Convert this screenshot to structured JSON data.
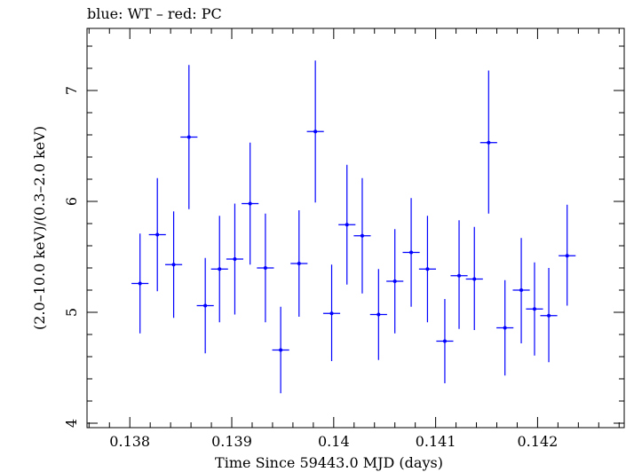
{
  "chart_data": {
    "type": "scatter",
    "title": "blue: WT – red: PC",
    "xlabel": "Time Since 59443.0 MJD (days)",
    "ylabel": "(2.0–10.0 keV)/(0.3–2.0 keV)",
    "xlim": [
      0.13758,
      0.14285
    ],
    "ylim": [
      3.96,
      7.56
    ],
    "xticks": [
      0.138,
      0.139,
      0.14,
      0.141,
      0.142
    ],
    "xtick_labels": [
      "0.138",
      "0.139",
      "0.14",
      "0.141",
      "0.142"
    ],
    "yticks": [
      4,
      5,
      6,
      7
    ],
    "ytick_labels": [
      "4",
      "5",
      "6",
      "7"
    ],
    "grid": false,
    "series": [
      {
        "color": "#0000ff",
        "x_halfwidth": 8.33e-05,
        "points": [
          {
            "x": 0.1381,
            "y": 5.26,
            "lo": 4.81,
            "hi": 5.71
          },
          {
            "x": 0.13827,
            "y": 5.7,
            "lo": 5.19,
            "hi": 6.21
          },
          {
            "x": 0.13843,
            "y": 5.43,
            "lo": 4.95,
            "hi": 5.91
          },
          {
            "x": 0.13858,
            "y": 6.58,
            "lo": 5.93,
            "hi": 7.23
          },
          {
            "x": 0.13874,
            "y": 5.06,
            "lo": 4.63,
            "hi": 5.49
          },
          {
            "x": 0.13888,
            "y": 5.39,
            "lo": 4.91,
            "hi": 5.87
          },
          {
            "x": 0.13903,
            "y": 5.48,
            "lo": 4.98,
            "hi": 5.98
          },
          {
            "x": 0.13918,
            "y": 5.98,
            "lo": 5.43,
            "hi": 6.53
          },
          {
            "x": 0.13933,
            "y": 5.4,
            "lo": 4.91,
            "hi": 5.89
          },
          {
            "x": 0.13948,
            "y": 4.66,
            "lo": 4.27,
            "hi": 5.05
          },
          {
            "x": 0.13966,
            "y": 5.44,
            "lo": 4.96,
            "hi": 5.92
          },
          {
            "x": 0.13982,
            "y": 6.63,
            "lo": 5.99,
            "hi": 7.27
          },
          {
            "x": 0.13998,
            "y": 4.99,
            "lo": 4.56,
            "hi": 5.43
          },
          {
            "x": 0.14013,
            "y": 5.79,
            "lo": 5.25,
            "hi": 6.33
          },
          {
            "x": 0.14028,
            "y": 5.69,
            "lo": 5.17,
            "hi": 6.21
          },
          {
            "x": 0.14044,
            "y": 4.98,
            "lo": 4.57,
            "hi": 5.39
          },
          {
            "x": 0.1406,
            "y": 5.28,
            "lo": 4.81,
            "hi": 5.75
          },
          {
            "x": 0.14076,
            "y": 5.54,
            "lo": 5.05,
            "hi": 6.03
          },
          {
            "x": 0.14092,
            "y": 5.39,
            "lo": 4.91,
            "hi": 5.87
          },
          {
            "x": 0.14109,
            "y": 4.74,
            "lo": 4.36,
            "hi": 5.12
          },
          {
            "x": 0.14123,
            "y": 5.33,
            "lo": 4.85,
            "hi": 5.83
          },
          {
            "x": 0.14138,
            "y": 5.3,
            "lo": 4.84,
            "hi": 5.77
          },
          {
            "x": 0.14152,
            "y": 6.53,
            "lo": 5.89,
            "hi": 7.18
          },
          {
            "x": 0.14168,
            "y": 4.86,
            "lo": 4.43,
            "hi": 5.29
          },
          {
            "x": 0.14184,
            "y": 5.2,
            "lo": 4.72,
            "hi": 5.67
          },
          {
            "x": 0.14197,
            "y": 5.03,
            "lo": 4.61,
            "hi": 5.45
          },
          {
            "x": 0.14211,
            "y": 4.97,
            "lo": 4.55,
            "hi": 5.4
          },
          {
            "x": 0.14229,
            "y": 5.51,
            "lo": 5.06,
            "hi": 5.97
          }
        ]
      }
    ]
  }
}
